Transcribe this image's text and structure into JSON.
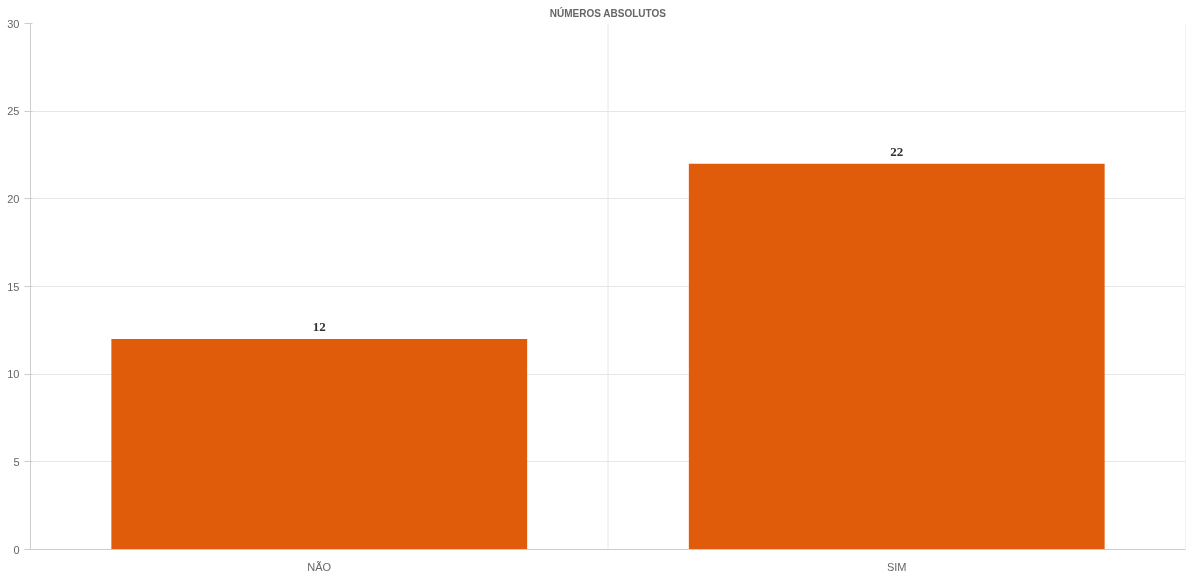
{
  "chart_data": {
    "type": "bar",
    "title": "NÚMEROS ABSOLUTOS",
    "categories": [
      "NÃO",
      "SIM"
    ],
    "values": [
      12,
      22
    ],
    "color": "#e05c0a",
    "ylim": [
      0,
      30
    ],
    "yticks": [
      0,
      5,
      10,
      15,
      20,
      25,
      30
    ],
    "grid": true,
    "data_labels": true
  }
}
